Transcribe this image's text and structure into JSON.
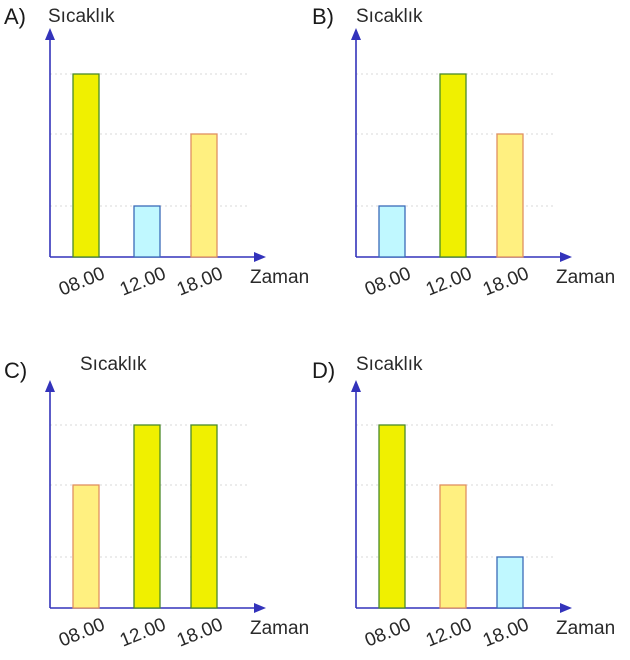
{
  "chart_data": [
    {
      "option": "A)",
      "type": "bar",
      "ylabel": "Sıcaklık",
      "xlabel": "Zaman",
      "categories": [
        "08.00",
        "12.00",
        "18.00"
      ],
      "values": [
        3,
        1,
        2
      ],
      "bar_colors": [
        "#f0f000",
        "#c0f8ff",
        "#fff080"
      ],
      "ylim": [
        0,
        3
      ],
      "grid": true
    },
    {
      "option": "B)",
      "type": "bar",
      "ylabel": "Sıcaklık",
      "xlabel": "Zaman",
      "categories": [
        "08.00",
        "12.00",
        "18.00"
      ],
      "values": [
        1,
        3,
        2
      ],
      "bar_colors": [
        "#c0f8ff",
        "#f0f000",
        "#fff080"
      ],
      "ylim": [
        0,
        3
      ],
      "grid": true
    },
    {
      "option": "C)",
      "type": "bar",
      "ylabel": "Sıcaklık",
      "xlabel": "Zaman",
      "categories": [
        "08.00",
        "12.00",
        "18.00"
      ],
      "values": [
        2,
        3,
        3
      ],
      "bar_colors": [
        "#fff080",
        "#f0f000",
        "#f0f000"
      ],
      "ylim": [
        0,
        3
      ],
      "grid": true
    },
    {
      "option": "D)",
      "type": "bar",
      "ylabel": "Sıcaklık",
      "xlabel": "Zaman",
      "categories": [
        "08.00",
        "12.00",
        "18.00"
      ],
      "values": [
        3,
        2,
        1
      ],
      "bar_colors": [
        "#f0f000",
        "#fff080",
        "#c0f8ff"
      ],
      "ylim": [
        0,
        3
      ],
      "grid": true
    }
  ],
  "colors": {
    "axis": "#3333bb",
    "grid": "#d8d8d8",
    "bar_yellow_stroke": "#4a8a2a",
    "bar_cyan_stroke": "#3a6ab8",
    "bar_light_stroke": "#e09060"
  }
}
